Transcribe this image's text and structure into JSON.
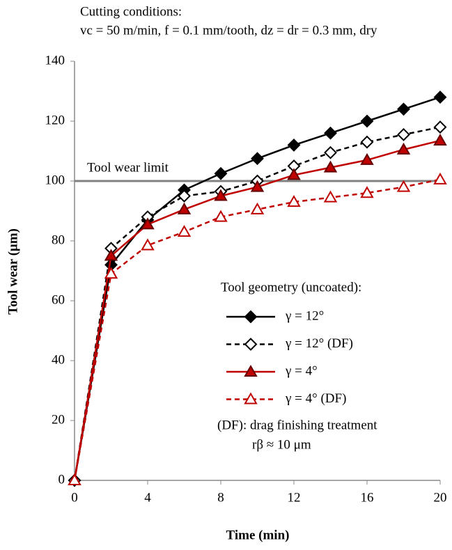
{
  "chart_data": {
    "type": "line",
    "title": "Cutting conditions:",
    "subtitle": "vc = 50 m/min, f = 0.1 mm/tooth, dz = dr = 0.3 mm, dry",
    "x_label": "Time (min)",
    "y_label": "Tool wear (μm)",
    "x": [
      0,
      2,
      4,
      6,
      8,
      10,
      12,
      14,
      16,
      18,
      20
    ],
    "series": [
      {
        "name": "γ = 12°",
        "color": "#000000",
        "marker": "diamond",
        "filled": true,
        "dashed": false,
        "values": [
          0,
          72,
          87,
          97,
          102.5,
          107.5,
          112,
          116,
          120,
          124,
          128
        ]
      },
      {
        "name": "γ = 12° (DF)",
        "color": "#000000",
        "marker": "diamond",
        "filled": false,
        "dashed": true,
        "values": [
          0,
          77.5,
          88,
          95,
          96.5,
          100,
          105,
          109.5,
          113,
          115.5,
          118
        ]
      },
      {
        "name": "γ = 4°",
        "color": "#c00000",
        "marker": "triangle",
        "filled": true,
        "dashed": false,
        "values": [
          0,
          75,
          85.5,
          90.5,
          95,
          98,
          102,
          104.5,
          107,
          110.5,
          113.5
        ]
      },
      {
        "name": "γ = 4° (DF)",
        "color": "#c00000",
        "marker": "triangle",
        "filled": false,
        "dashed": true,
        "values": [
          0,
          69,
          78.5,
          83,
          88,
          90.5,
          93,
          94.5,
          96,
          98,
          100.5
        ]
      }
    ],
    "legend_title": "Tool geometry (uncoated):",
    "notes": [
      "(DF): drag finishing treatment",
      "rβ ≈ 10 μm"
    ],
    "reference_lines": [
      {
        "value": 100,
        "label": "Tool wear limit",
        "color": "#808080"
      }
    ],
    "xlim": [
      0,
      20
    ],
    "xticks": [
      0,
      4,
      8,
      12,
      16,
      20
    ],
    "ylim": [
      0,
      140
    ],
    "yticks": [
      0,
      20,
      40,
      60,
      80,
      100,
      120,
      140
    ]
  }
}
